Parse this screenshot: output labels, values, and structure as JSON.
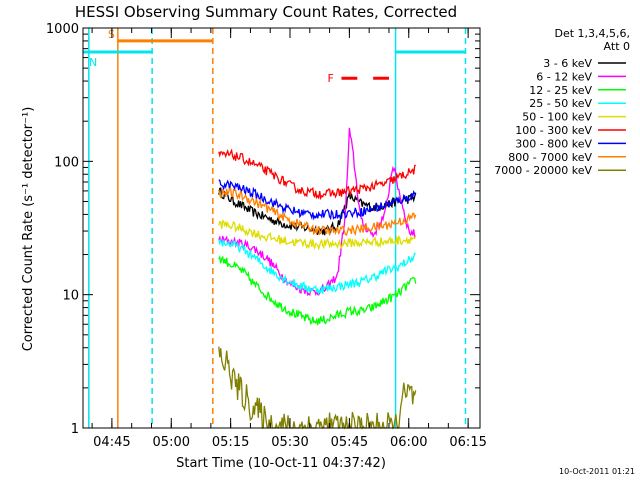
{
  "chart_data": {
    "type": "line",
    "title": "HESSI Observing Summary Count Rates, Corrected",
    "xlabel": "Start Time (10-Oct-11 04:37:42)",
    "ylabel": "Corrected Count Rate (s⁻¹ detector⁻¹)",
    "y_scale": "log",
    "ylim": [
      1,
      1000
    ],
    "xlim": [
      "04:37:42",
      "06:18:00"
    ],
    "x_ticks": [
      "04:45",
      "05:00",
      "05:15",
      "05:30",
      "05:45",
      "06:00",
      "06:15"
    ],
    "y_ticks": [
      "1",
      "10",
      "100",
      "1000"
    ],
    "legend": {
      "title_lines": [
        "Det 1,3,4,5,6,",
        "Att 0"
      ],
      "placement": "right-outside"
    },
    "footer_date": "10-Oct-2011 01:21",
    "markers": {
      "S": {
        "label": "S",
        "color": "#ff7f00",
        "from": "04:46:30",
        "to": "05:10:30",
        "level": 800
      },
      "N": {
        "label": "N",
        "color": "#00e5ee",
        "from": "04:37:42",
        "to": "04:55:10",
        "level": 660
      },
      "N2": {
        "color": "#00e5ee",
        "from": "05:56:40",
        "to": "06:14:20",
        "level": 660
      },
      "F": {
        "label": "F",
        "color": "#ff0000",
        "segments": [
          [
            "05:43:00",
            "05:47:00"
          ],
          [
            "05:51:00",
            "05:55:00"
          ]
        ],
        "level": 420
      }
    },
    "vertical_lines": [
      {
        "t": "04:46:30",
        "color": "#ff7f00",
        "style": "solid"
      },
      {
        "t": "04:55:10",
        "color": "#00e5ee",
        "style": "dashed"
      },
      {
        "t": "05:10:30",
        "color": "#ff7f00",
        "style": "dashed"
      },
      {
        "t": "05:56:40",
        "color": "#00e5ee",
        "style": "solid"
      },
      {
        "t": "06:14:20",
        "color": "#00e5ee",
        "style": "dashed"
      },
      {
        "t": "04:39:10",
        "color": "#00e5ee",
        "style": "solid"
      }
    ],
    "series": [
      {
        "name": "3 - 6 keV",
        "color": "#000000",
        "x": [
          "05:12",
          "05:15",
          "05:18",
          "05:21",
          "05:24",
          "05:27",
          "05:30",
          "05:33",
          "05:36",
          "05:39",
          "05:42",
          "05:45",
          "05:48",
          "05:51",
          "05:54",
          "05:57",
          "06:00",
          "06:02"
        ],
        "values": [
          60,
          52,
          46,
          41,
          38,
          35,
          33,
          32,
          31,
          30,
          33,
          55,
          48,
          45,
          47,
          50,
          52,
          55
        ]
      },
      {
        "name": "6 - 12 keV",
        "color": "#ff00ff",
        "x": [
          "05:12",
          "05:15",
          "05:18",
          "05:21",
          "05:24",
          "05:27",
          "05:30",
          "05:33",
          "05:36",
          "05:39",
          "05:42",
          "05:44",
          "05:45",
          "05:46",
          "05:47",
          "05:48",
          "05:51",
          "05:54",
          "05:56",
          "05:57",
          "06:00",
          "06:02"
        ],
        "values": [
          26,
          25,
          24,
          22,
          19,
          15,
          12,
          11,
          10.5,
          11,
          14,
          40,
          170,
          110,
          60,
          35,
          28,
          40,
          95,
          70,
          30,
          28
        ]
      },
      {
        "name": "12 - 25 keV",
        "color": "#00ff00",
        "x": [
          "05:12",
          "05:15",
          "05:18",
          "05:21",
          "05:24",
          "05:27",
          "05:30",
          "05:33",
          "05:36",
          "05:39",
          "05:42",
          "05:45",
          "05:48",
          "05:51",
          "05:54",
          "05:57",
          "06:00",
          "06:02"
        ],
        "values": [
          19,
          17,
          15,
          12,
          10,
          8.5,
          7.5,
          6.8,
          6.3,
          6.5,
          7,
          7.5,
          7.5,
          8,
          9,
          10,
          12,
          13
        ]
      },
      {
        "name": "25 - 50 keV",
        "color": "#00ffff",
        "x": [
          "05:12",
          "05:15",
          "05:18",
          "05:21",
          "05:24",
          "05:27",
          "05:30",
          "05:33",
          "05:36",
          "05:39",
          "05:42",
          "05:45",
          "05:48",
          "05:51",
          "05:54",
          "05:57",
          "06:00",
          "06:02"
        ],
        "values": [
          25,
          24,
          22,
          19,
          16,
          14,
          12.5,
          11.5,
          11,
          11,
          11.5,
          12,
          12.5,
          13.5,
          15,
          16,
          18,
          20
        ]
      },
      {
        "name": "50 - 100 keV",
        "color": "#dddd00",
        "x": [
          "05:12",
          "05:15",
          "05:18",
          "05:21",
          "05:24",
          "05:27",
          "05:30",
          "05:33",
          "05:36",
          "05:39",
          "05:42",
          "05:45",
          "05:48",
          "05:51",
          "05:54",
          "05:57",
          "06:00",
          "06:02"
        ],
        "values": [
          34,
          33,
          31,
          29,
          27,
          26,
          25,
          24.5,
          24,
          24,
          24,
          24.5,
          24.5,
          25,
          25,
          25.5,
          26,
          27
        ]
      },
      {
        "name": "100 - 300 keV",
        "color": "#ff0000",
        "x": [
          "05:12",
          "05:15",
          "05:18",
          "05:21",
          "05:24",
          "05:27",
          "05:30",
          "05:33",
          "05:36",
          "05:39",
          "05:42",
          "05:45",
          "05:48",
          "05:51",
          "05:54",
          "05:57",
          "06:00",
          "06:02"
        ],
        "values": [
          110,
          112,
          105,
          95,
          85,
          75,
          66,
          60,
          58,
          57,
          58,
          60,
          62,
          65,
          68,
          75,
          82,
          88
        ]
      },
      {
        "name": "300 - 800 keV",
        "color": "#0000ff",
        "x": [
          "05:12",
          "05:15",
          "05:18",
          "05:21",
          "05:24",
          "05:27",
          "05:30",
          "05:33",
          "05:36",
          "05:39",
          "05:42",
          "05:45",
          "05:48",
          "05:51",
          "05:54",
          "05:57",
          "06:00",
          "06:02"
        ],
        "values": [
          68,
          66,
          62,
          57,
          52,
          47,
          43,
          41,
          40,
          40,
          40,
          41,
          42,
          44,
          47,
          50,
          54,
          58
        ]
      },
      {
        "name": "800 - 7000 keV",
        "color": "#ff7f00",
        "x": [
          "05:12",
          "05:15",
          "05:18",
          "05:21",
          "05:24",
          "05:27",
          "05:30",
          "05:33",
          "05:36",
          "05:39",
          "05:42",
          "05:45",
          "05:48",
          "05:51",
          "05:54",
          "05:57",
          "06:00",
          "06:02"
        ],
        "values": [
          58,
          58,
          55,
          50,
          45,
          40,
          36,
          33,
          31,
          30,
          30,
          30.5,
          31,
          32,
          33,
          35,
          37,
          40
        ]
      },
      {
        "name": "7000 - 20000 keV",
        "color": "#808000",
        "x": [
          "05:12",
          "05:14",
          "05:15",
          "05:16",
          "05:18",
          "05:20",
          "05:22",
          "05:24",
          "05:26",
          "05:57",
          "05:58",
          "06:00",
          "06:02"
        ],
        "values": [
          3.5,
          3,
          2.6,
          2.2,
          1.8,
          1.5,
          1.3,
          1.1,
          1,
          1,
          1.6,
          1.8,
          1.6
        ]
      }
    ]
  }
}
